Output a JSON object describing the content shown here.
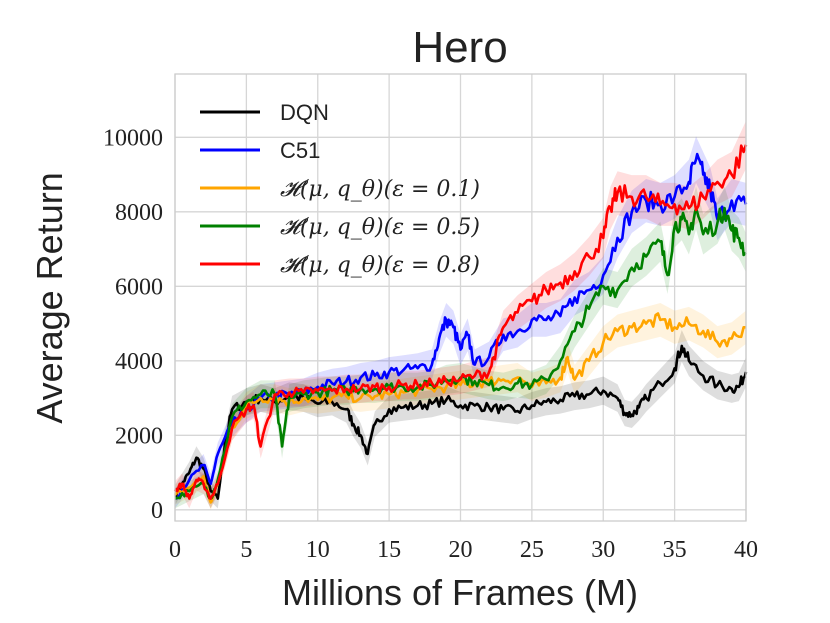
{
  "chart_data": {
    "type": "line",
    "title": "Hero",
    "xlabel": "Millions of Frames (M)",
    "ylabel": "Average Return",
    "xlim": [
      0,
      40
    ],
    "ylim": [
      -300,
      11700
    ],
    "xticks": [
      "0",
      "5",
      "10",
      "15",
      "20",
      "25",
      "30",
      "35",
      "40"
    ],
    "yticks": [
      "0",
      "2000",
      "4000",
      "6000",
      "8000",
      "10000"
    ],
    "grid": true,
    "legend_position": "top-left",
    "series": [
      {
        "name": "DQN",
        "color": "#000000",
        "x": [
          0,
          0.5,
          1,
          1.5,
          2,
          2.5,
          3,
          3.5,
          4,
          5,
          6,
          7,
          8,
          9,
          10,
          11,
          12,
          12.5,
          13,
          13.5,
          14,
          15,
          16,
          17,
          18,
          19,
          20,
          21,
          22,
          23,
          24,
          25,
          26,
          27,
          28,
          29,
          30,
          31,
          31.5,
          32,
          32.5,
          33,
          34,
          35,
          35.5,
          36,
          37,
          38,
          39,
          39.5,
          40
        ],
        "y": [
          400,
          700,
          1000,
          1400,
          1100,
          500,
          300,
          1800,
          2700,
          2900,
          3000,
          2900,
          3050,
          3000,
          2850,
          2900,
          2700,
          2300,
          2000,
          1500,
          2300,
          2700,
          2750,
          2800,
          2850,
          2950,
          2800,
          2800,
          2750,
          2700,
          2650,
          2800,
          2900,
          2950,
          3050,
          3100,
          3200,
          3000,
          2600,
          2550,
          2750,
          3000,
          3400,
          3800,
          4400,
          4000,
          3600,
          3350,
          3250,
          3300,
          3700
        ]
      },
      {
        "name": "C51",
        "color": "#0000ff",
        "x": [
          0,
          1,
          2,
          2.5,
          3,
          4,
          5,
          6,
          7,
          8,
          9,
          10,
          11,
          12,
          13,
          14,
          15,
          16,
          17,
          18,
          18.5,
          19,
          19.5,
          20,
          20.5,
          21,
          22,
          23,
          24,
          25,
          26,
          27,
          28,
          29,
          30,
          31,
          32,
          33,
          34,
          35,
          36,
          36.5,
          37,
          37.5,
          38,
          39,
          40
        ],
        "y": [
          300,
          800,
          1200,
          700,
          1500,
          2300,
          2700,
          3000,
          3050,
          3100,
          3150,
          3300,
          3400,
          3450,
          3550,
          3600,
          3700,
          3750,
          3800,
          3900,
          4600,
          5100,
          4900,
          4300,
          4700,
          3900,
          4100,
          4700,
          4800,
          5100,
          5100,
          5200,
          5700,
          5900,
          6300,
          7300,
          8000,
          8300,
          8200,
          8400,
          8800,
          9400,
          9000,
          8600,
          7800,
          8300,
          8200
        ]
      },
      {
        "name": "𝓗(μ, q_θ)(ε = 0.1)",
        "color": "#ffa500",
        "x": [
          0,
          1,
          2,
          2.5,
          3,
          4,
          5,
          6,
          7,
          8,
          9,
          10,
          11,
          12,
          13,
          14,
          15,
          16,
          17,
          18,
          19,
          20,
          21,
          22,
          23,
          24,
          25,
          26,
          27,
          27.5,
          28,
          29,
          30,
          31,
          32,
          33,
          34,
          35,
          36,
          37,
          38,
          39,
          40
        ],
        "y": [
          400,
          600,
          900,
          200,
          700,
          2200,
          2800,
          3000,
          3000,
          2900,
          3000,
          2950,
          3000,
          3050,
          3000,
          3050,
          3100,
          3150,
          3200,
          3250,
          3300,
          3350,
          3400,
          3450,
          3500,
          3550,
          3300,
          3400,
          3550,
          4100,
          3500,
          4000,
          4500,
          4800,
          4900,
          5000,
          5100,
          4900,
          5000,
          4800,
          4500,
          4600,
          4900
        ]
      },
      {
        "name": "𝓗(μ, q_θ)(ε = 0.5)",
        "color": "#008000",
        "x": [
          0,
          1,
          2,
          2.5,
          3,
          4,
          5,
          6,
          7,
          7.5,
          8,
          9,
          10,
          11,
          12,
          13,
          14,
          15,
          16,
          17,
          18,
          19,
          20,
          21,
          22,
          23,
          24,
          25,
          26,
          27,
          28,
          29,
          30,
          31,
          32,
          33,
          34,
          34.5,
          35,
          35.5,
          36,
          36.5,
          37,
          38,
          38.5,
          39,
          39.5,
          40
        ],
        "y": [
          300,
          500,
          700,
          300,
          800,
          2500,
          2900,
          3100,
          3100,
          1700,
          3000,
          3100,
          3150,
          3200,
          3200,
          3250,
          3250,
          3300,
          3300,
          3300,
          3350,
          3500,
          3550,
          3450,
          3350,
          3300,
          3400,
          3350,
          3500,
          4000,
          4800,
          5400,
          6000,
          5900,
          6500,
          6800,
          7200,
          6300,
          7600,
          7800,
          7400,
          8100,
          7400,
          7700,
          8100,
          7500,
          7300,
          6900
        ]
      },
      {
        "name": "𝓗(μ, q_θ)(ε = 0.8)",
        "color": "#ff0000",
        "x": [
          0,
          0.5,
          1,
          1.5,
          2,
          2.5,
          3,
          4,
          5,
          5.5,
          6,
          7,
          8,
          9,
          10,
          11,
          12,
          13,
          14,
          15,
          16,
          17,
          18,
          19,
          20,
          21,
          22,
          22.5,
          23,
          24,
          25,
          26,
          27,
          28,
          29,
          30,
          30.5,
          31,
          32,
          33,
          34,
          35,
          36,
          37,
          38,
          39,
          40
        ],
        "y": [
          500,
          700,
          300,
          800,
          700,
          300,
          700,
          2200,
          2700,
          2800,
          1700,
          3100,
          3150,
          3150,
          3200,
          3200,
          3250,
          3250,
          3300,
          3300,
          3350,
          3350,
          3400,
          3450,
          3500,
          3600,
          3700,
          4300,
          4900,
          5300,
          5600,
          5900,
          6100,
          6400,
          6800,
          7300,
          8100,
          8500,
          8400,
          8400,
          8200,
          8200,
          8100,
          8400,
          8800,
          9000,
          9800
        ]
      }
    ]
  }
}
